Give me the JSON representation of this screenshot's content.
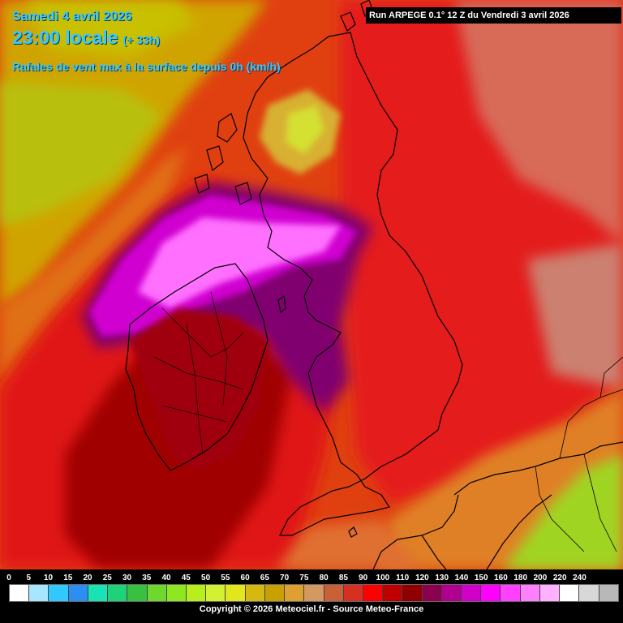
{
  "header": {
    "date": "Samedi 4 avril 2026",
    "time": "23:00 locale",
    "lead": "(+ 33h)",
    "parameter": "Rafales de vent max à la surface depuis 0h (km/h)",
    "run": "Run ARPEGE 0.1° 12 Z du Vendredi 3 avril 2026"
  },
  "legend": {
    "ticks": [
      "0",
      "5",
      "10",
      "15",
      "20",
      "25",
      "30",
      "35",
      "40",
      "45",
      "50",
      "55",
      "60",
      "65",
      "70",
      "75",
      "80",
      "85",
      "90",
      "100",
      "110",
      "120",
      "130",
      "140",
      "150",
      "160",
      "180",
      "200",
      "220",
      "240"
    ],
    "colors": [
      "#ffffff",
      "#a6e6ff",
      "#30c8ff",
      "#2a8ff0",
      "#16e4b4",
      "#1ed27a",
      "#38c040",
      "#6ed82e",
      "#8ee820",
      "#b8ee1c",
      "#d4f032",
      "#e2e61c",
      "#d6b810",
      "#c8a000",
      "#e0a030",
      "#d49860",
      "#c86038",
      "#d83020",
      "#ff0000",
      "#c00000",
      "#900000",
      "#8c0050",
      "#b00090",
      "#d000c8",
      "#ff00ff",
      "#ff40ff",
      "#ff80ff",
      "#ffb0ff",
      "#ffffff",
      "#d8d8d8",
      "#b8b8b8"
    ],
    "copyright": "Copyright © 2026 Meteociel.fr - Source Meteo-France"
  }
}
